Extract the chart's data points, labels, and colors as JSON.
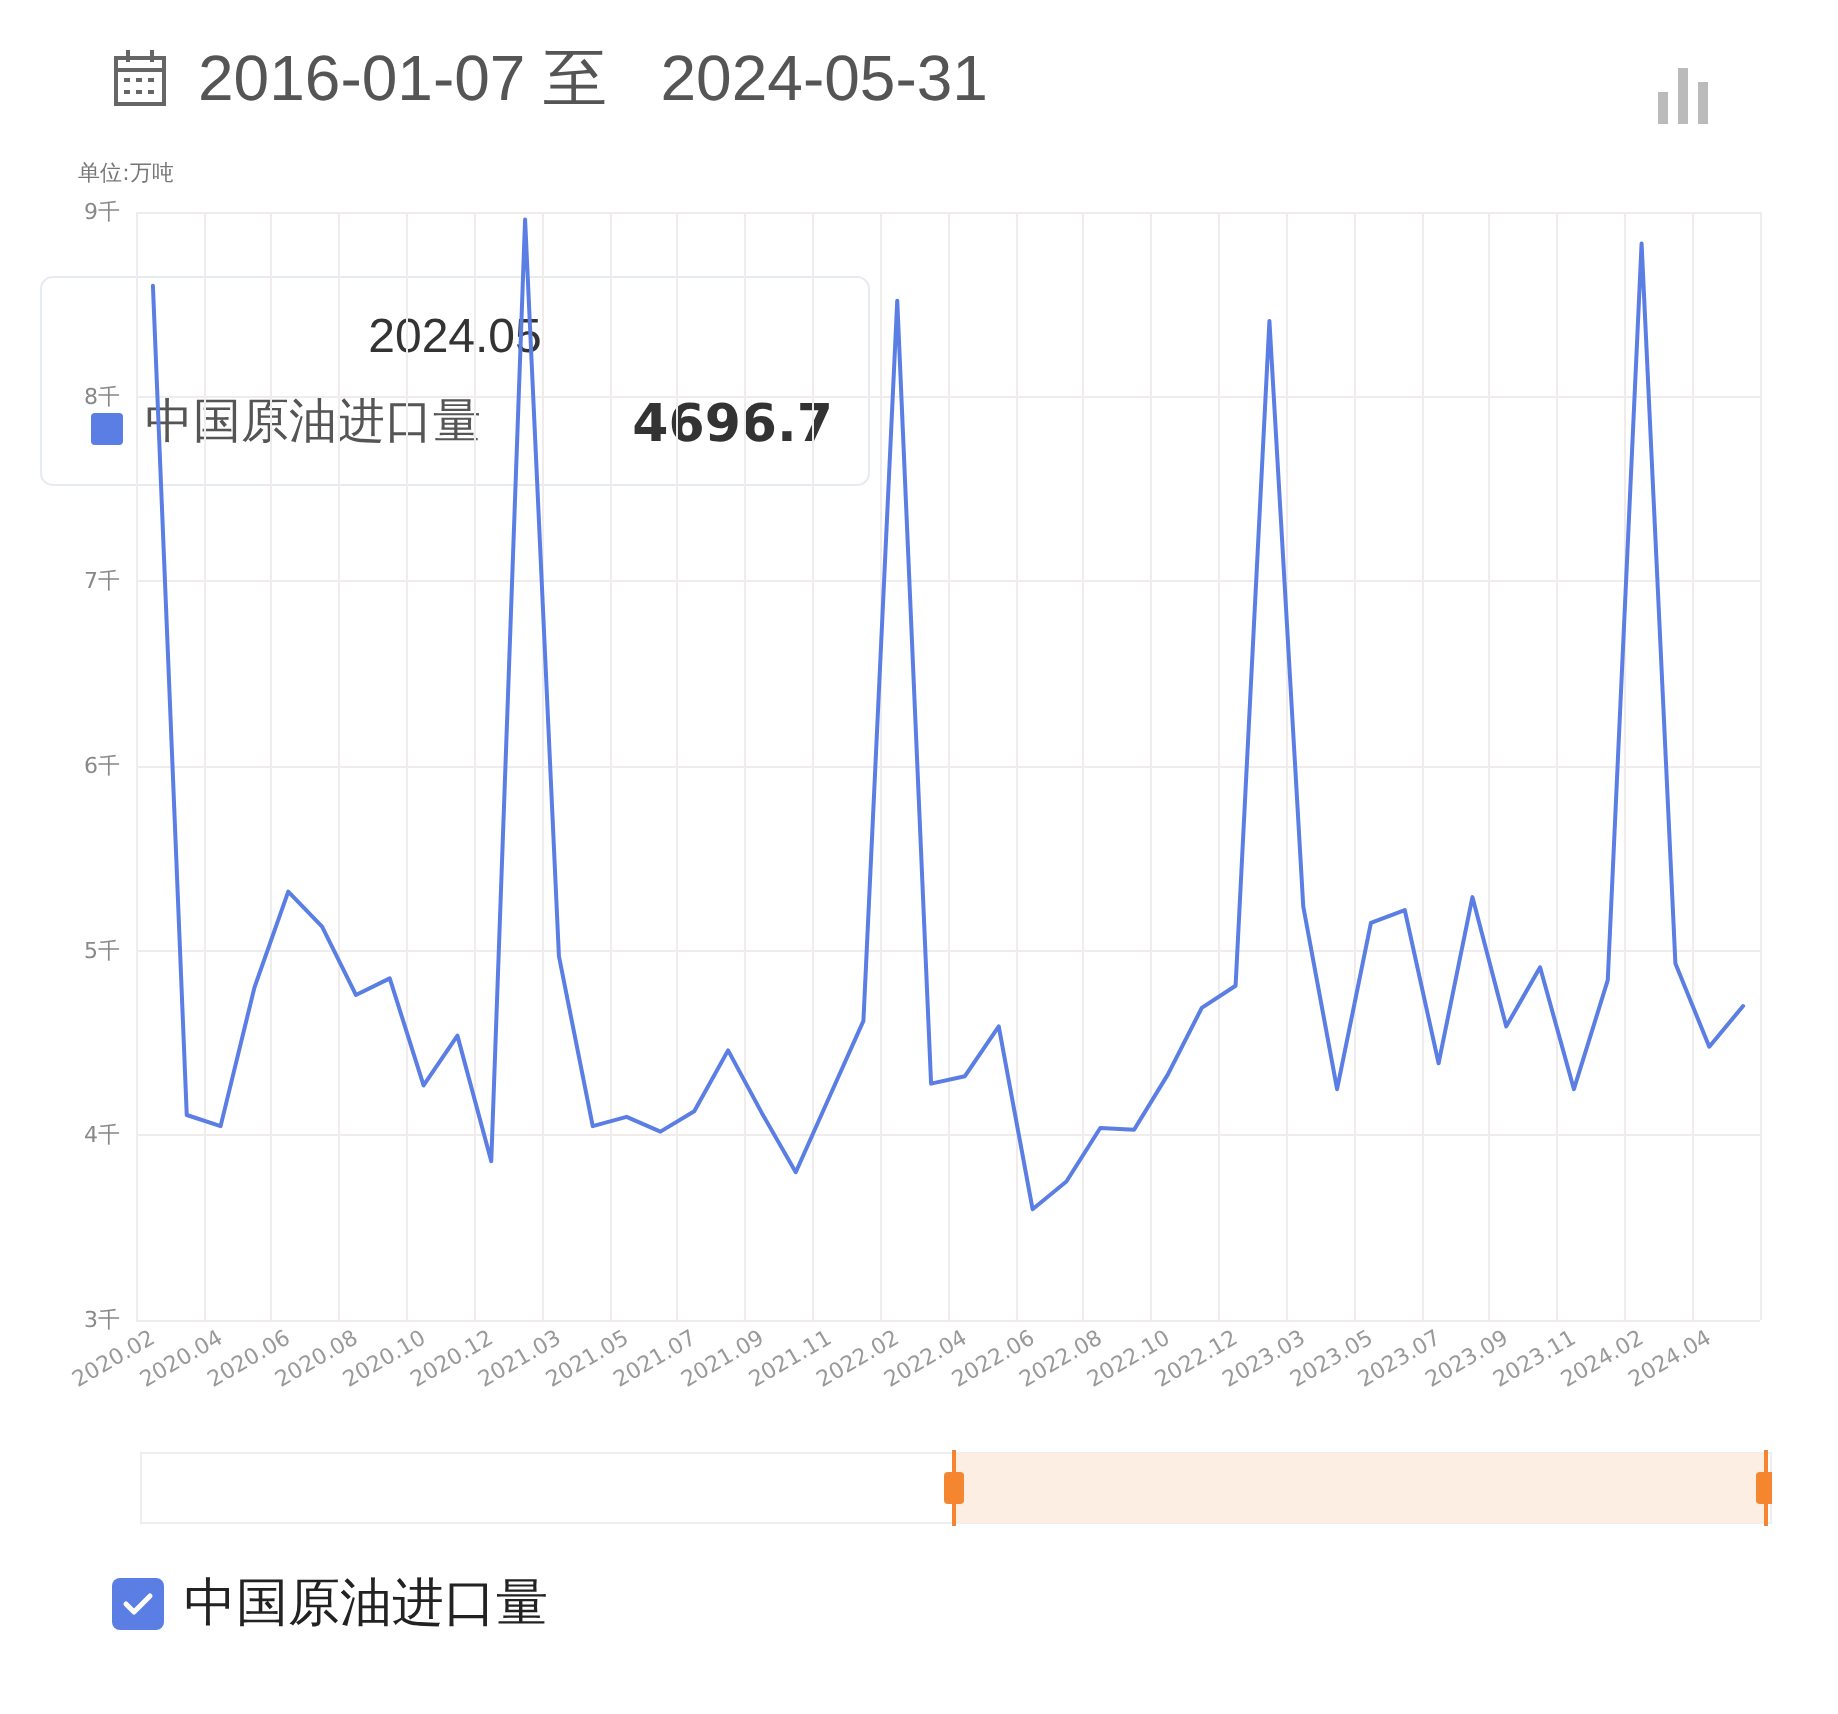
{
  "chart_data": {
    "type": "line",
    "title": "2016-01-07 至   2024-05-31",
    "ylabel": "单位:万吨",
    "categories": [
      "2020.02",
      null,
      "2020.04",
      null,
      "2020.06",
      null,
      "2020.08",
      null,
      "2020.10",
      null,
      "2020.12",
      null,
      "2021.03",
      null,
      "2021.05",
      null,
      "2021.07",
      null,
      "2021.09",
      null,
      "2021.11",
      null,
      "2022.02",
      null,
      "2022.04",
      null,
      "2022.06",
      null,
      "2022.08",
      null,
      "2022.10",
      null,
      "2022.12",
      null,
      "2023.03",
      null,
      "2023.05",
      null,
      "2023.07",
      null,
      "2023.09",
      null,
      "2023.11",
      null,
      "2024.02",
      null,
      "2024.04",
      null
    ],
    "series": [
      {
        "name": "中国原油进口量",
        "color": "#5b7ee5",
        "values": [
          8.6,
          4.11,
          4.05,
          4.8,
          5.32,
          5.13,
          4.76,
          4.85,
          4.27,
          4.54,
          3.86,
          8.96,
          4.97,
          4.05,
          4.1,
          4.02,
          4.13,
          4.46,
          4.12,
          3.8,
          4.21,
          4.62,
          8.52,
          4.28,
          4.32,
          4.59,
          3.6,
          3.75,
          4.04,
          4.03,
          4.33,
          4.69,
          4.81,
          8.41,
          5.24,
          4.25,
          5.15,
          5.22,
          4.39,
          5.29,
          4.59,
          4.91,
          4.25,
          4.84,
          8.83,
          4.93,
          4.48,
          4.7
        ]
      }
    ],
    "ylim": [
      3,
      9
    ],
    "yticks": [
      {
        "value": 3,
        "label": "3千"
      },
      {
        "value": 4,
        "label": "4千"
      },
      {
        "value": 5,
        "label": "5千"
      },
      {
        "value": 6,
        "label": "6千"
      },
      {
        "value": 7,
        "label": "7千"
      },
      {
        "value": 8,
        "label": "8千"
      },
      {
        "value": 9,
        "label": "9千"
      }
    ],
    "annotations": [
      "2024.05",
      "4696.7"
    ],
    "grid": true,
    "legend": "top left",
    "marker": "none",
    "line_style": "solid"
  }
}
